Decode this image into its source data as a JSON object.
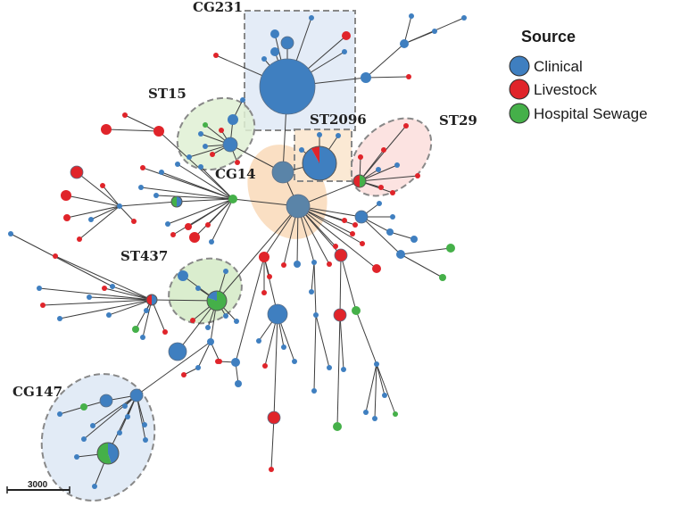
{
  "legend": {
    "title": "Source",
    "items": [
      {
        "label": "Clinical",
        "color": "#3f7fc0"
      },
      {
        "label": "Livestock",
        "color": "#e0242a"
      },
      {
        "label": "Hospital Sewage",
        "color": "#45b049"
      }
    ]
  },
  "clusters": {
    "cg231": "CG231",
    "st15": "ST15",
    "st2096": "ST2096",
    "st29": "ST29",
    "cg14": "CG14",
    "st437": "ST437",
    "cg147": "CG147"
  },
  "scale_bar": "3000",
  "colors": {
    "clinical": "#3f7fc0",
    "livestock": "#e0242a",
    "sewage": "#45b049",
    "hub": "#5a84a8"
  }
}
